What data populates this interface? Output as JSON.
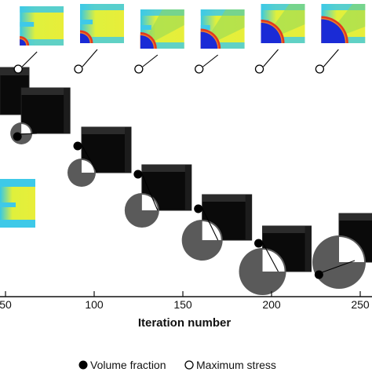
{
  "chart_data": {
    "type": "scatter",
    "title": "",
    "xlabel": "Iteration number",
    "ylabel": "",
    "xlim": [
      47,
      254
    ],
    "x_ticks": [
      50,
      100,
      150,
      200,
      250
    ],
    "x_tick_labels": [
      "50",
      "100",
      "150",
      "200",
      "250"
    ],
    "grid": false,
    "legend_position": "bottom",
    "series": [
      {
        "name": "Volume fraction",
        "marker": "filled-circle",
        "x": [
          66,
          100,
          134,
          168,
          202,
          236
        ],
        "insets": [
          "topology",
          "topology",
          "topology",
          "topology",
          "topology",
          "topology"
        ]
      },
      {
        "name": "Maximum stress",
        "marker": "open-circle",
        "x": [
          66,
          100,
          134,
          168,
          202,
          236
        ],
        "insets": [
          "stress-map",
          "stress-map",
          "stress-map",
          "stress-map",
          "stress-map",
          "stress-map"
        ]
      }
    ],
    "colors": {
      "axis": "#111111",
      "topology_solid": "#000000",
      "topology_hole": "#ffffff",
      "stress_background": "#e6ee3a",
      "stress_low": "#1a2bd6",
      "stress_mid": "#3ec9e8",
      "stress_high": "#e23a1c"
    }
  }
}
